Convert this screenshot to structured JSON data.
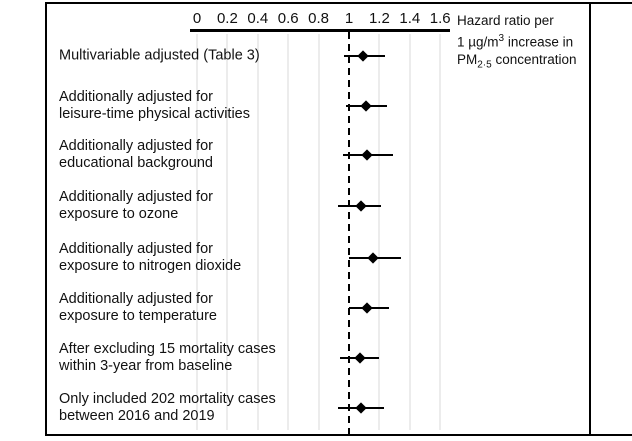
{
  "figure": {
    "axis_title": {
      "line1": "Hazard ratio per",
      "line2_pre": "1 µg/m",
      "line2_sup": "3",
      "line2_post": " increase in",
      "line3_pre": "PM",
      "line3_sub": "2·5",
      "line3_post": " concentration"
    }
  },
  "chart_data": {
    "type": "scatter",
    "variant": "forest-plot",
    "title": "",
    "xlabel": "Hazard ratio per 1 µg/m³ increase in PM2·5 concentration",
    "ylabel": "",
    "xlim": [
      0,
      1.6
    ],
    "grid": true,
    "x_ticks": [
      0,
      0.2,
      0.4,
      0.6,
      0.8,
      1,
      1.2,
      1.4,
      1.6
    ],
    "x_tick_labels": [
      "0",
      "0.2",
      "0.4",
      "0.6",
      "0.8",
      "1",
      "1.2",
      "1.4",
      "1.6"
    ],
    "reference_line_x": 1,
    "rows": [
      {
        "label": "Multivariable adjusted (Table 3)",
        "hr": 1.09,
        "ci_low": 0.97,
        "ci_high": 1.24
      },
      {
        "label": "Additionally adjusted for\nleisure-time physical activities",
        "hr": 1.11,
        "ci_low": 0.98,
        "ci_high": 1.25
      },
      {
        "label": "Additionally adjusted for\neducational background",
        "hr": 1.12,
        "ci_low": 0.96,
        "ci_high": 1.29
      },
      {
        "label": "Additionally adjusted for\nexposure to ozone",
        "hr": 1.08,
        "ci_low": 0.93,
        "ci_high": 1.21
      },
      {
        "label": "Additionally adjusted for\nexposure to nitrogen dioxide",
        "hr": 1.16,
        "ci_low": 1.0,
        "ci_high": 1.34
      },
      {
        "label": "Additionally adjusted for\nexposure to temperature",
        "hr": 1.12,
        "ci_low": 1.0,
        "ci_high": 1.26
      },
      {
        "label": "After excluding 15 mortality cases\nwithin 3-year from baseline",
        "hr": 1.07,
        "ci_low": 0.94,
        "ci_high": 1.2
      },
      {
        "label": "Only included 202 mortality cases\nbetween 2016 and 2019",
        "hr": 1.08,
        "ci_low": 0.93,
        "ci_high": 1.23
      }
    ]
  }
}
